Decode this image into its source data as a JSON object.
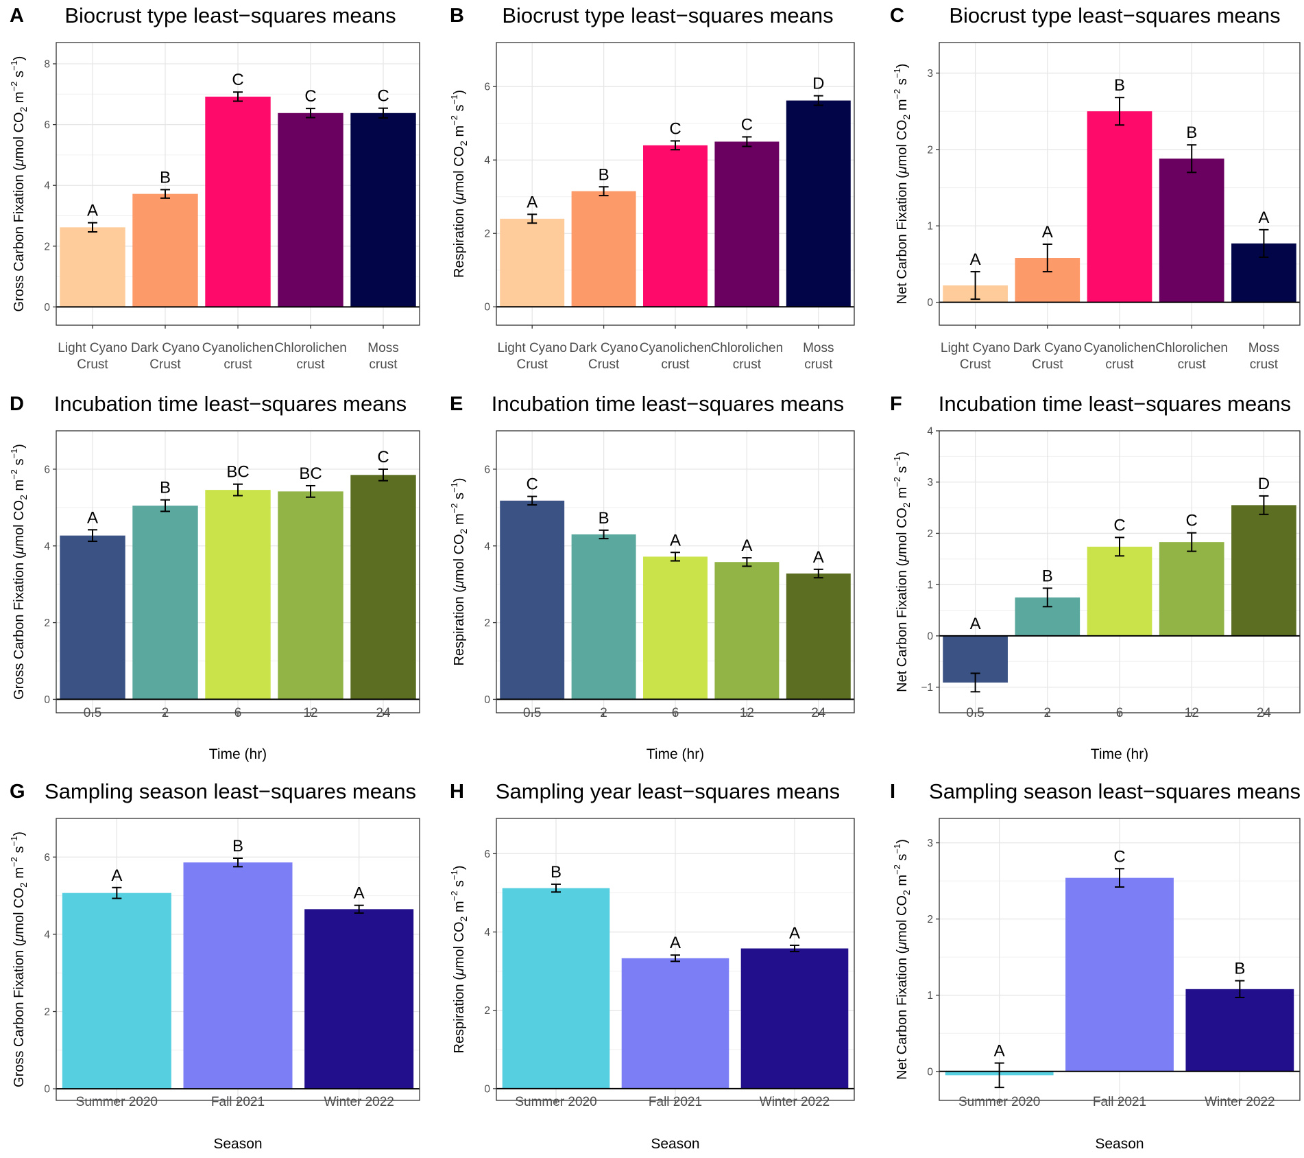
{
  "chart_data": [
    {
      "letter": "A",
      "title": "Biocrust type least−squares means",
      "type": "bar",
      "ylabel_pre": "Gross Carbon Fixation (",
      "xlabel": "",
      "ylim": [
        -0.6,
        8.7
      ],
      "yticks": [
        0,
        2,
        4,
        6,
        8
      ],
      "categories": [
        [
          "Light Cyano",
          "Crust"
        ],
        [
          "Dark Cyano",
          "Crust"
        ],
        [
          "Cyanolichen",
          "crust"
        ],
        [
          "Chlorolichen",
          "crust"
        ],
        [
          "Moss",
          "crust"
        ]
      ],
      "values": [
        2.62,
        3.72,
        6.92,
        6.38,
        6.38
      ],
      "se": [
        0.15,
        0.14,
        0.15,
        0.15,
        0.16
      ],
      "labels": [
        "A",
        "B",
        "C",
        "C",
        "C"
      ],
      "colors": [
        "#FDCC9A",
        "#FD9A6A",
        "#FE0A6A",
        "#6A005F",
        "#020648"
      ]
    },
    {
      "letter": "B",
      "title": "Biocrust type least−squares means",
      "type": "bar",
      "ylabel_pre": "Respiration (",
      "xlabel": "",
      "ylim": [
        -0.5,
        7.2
      ],
      "yticks": [
        0,
        2,
        4,
        6
      ],
      "categories": [
        [
          "Light Cyano",
          "Crust"
        ],
        [
          "Dark Cyano",
          "Crust"
        ],
        [
          "Cyanolichen",
          "crust"
        ],
        [
          "Chlorolichen",
          "crust"
        ],
        [
          "Moss",
          "crust"
        ]
      ],
      "values": [
        2.4,
        3.15,
        4.4,
        4.5,
        5.62
      ],
      "se": [
        0.12,
        0.12,
        0.12,
        0.13,
        0.13
      ],
      "labels": [
        "A",
        "B",
        "C",
        "C",
        "D"
      ],
      "colors": [
        "#FDCC9A",
        "#FD9A6A",
        "#FE0A6A",
        "#6A005F",
        "#020648"
      ]
    },
    {
      "letter": "C",
      "title": "Biocrust type least−squares means",
      "type": "bar",
      "ylabel_pre": "Net Carbon Fixation (",
      "xlabel": "",
      "ylim": [
        -0.3,
        3.4
      ],
      "yticks": [
        0,
        1,
        2,
        3
      ],
      "categories": [
        [
          "Light Cyano",
          "Crust"
        ],
        [
          "Dark Cyano",
          "Crust"
        ],
        [
          "Cyanolichen",
          "crust"
        ],
        [
          "Chlorolichen",
          "crust"
        ],
        [
          "Moss",
          "crust"
        ]
      ],
      "values": [
        0.22,
        0.58,
        2.5,
        1.88,
        0.77
      ],
      "se": [
        0.18,
        0.18,
        0.18,
        0.18,
        0.18
      ],
      "labels": [
        "A",
        "A",
        "B",
        "B",
        "A"
      ],
      "colors": [
        "#FDCC9A",
        "#FD9A6A",
        "#FE0A6A",
        "#6A005F",
        "#020648"
      ]
    },
    {
      "letter": "D",
      "title": "Incubation time least−squares means",
      "type": "bar",
      "ylabel_pre": "Gross Carbon Fixation (",
      "xlabel": "Time (hr)",
      "ylim": [
        -0.35,
        7.0
      ],
      "yticks": [
        0,
        2,
        4,
        6
      ],
      "categories": [
        [
          "0.5"
        ],
        [
          "2"
        ],
        [
          "6"
        ],
        [
          "12"
        ],
        [
          "24"
        ]
      ],
      "values": [
        4.27,
        5.05,
        5.46,
        5.42,
        5.85
      ],
      "se": [
        0.15,
        0.15,
        0.15,
        0.15,
        0.15
      ],
      "labels": [
        "A",
        "B",
        "BC",
        "BC",
        "C"
      ],
      "colors": [
        "#3B5284",
        "#5BA89F",
        "#CBE34B",
        "#92B346",
        "#5B6E22"
      ]
    },
    {
      "letter": "E",
      "title": "Incubation time least−squares means",
      "type": "bar",
      "ylabel_pre": "Respiration (",
      "xlabel": "Time (hr)",
      "ylim": [
        -0.35,
        7.0
      ],
      "yticks": [
        0,
        2,
        4,
        6
      ],
      "categories": [
        [
          "0.5"
        ],
        [
          "2"
        ],
        [
          "6"
        ],
        [
          "12"
        ],
        [
          "24"
        ]
      ],
      "values": [
        5.18,
        4.3,
        3.72,
        3.58,
        3.28
      ],
      "se": [
        0.11,
        0.11,
        0.11,
        0.11,
        0.11
      ],
      "labels": [
        "C",
        "B",
        "A",
        "A",
        "A"
      ],
      "colors": [
        "#3B5284",
        "#5BA89F",
        "#CBE34B",
        "#92B346",
        "#5B6E22"
      ]
    },
    {
      "letter": "F",
      "title": "Incubation time least−squares means",
      "type": "bar",
      "ylabel_pre": "Net Carbon Fixation (",
      "xlabel": "Time (hr)",
      "ylim": [
        -1.5,
        4.0
      ],
      "yticks": [
        -1,
        0,
        1,
        2,
        3,
        4
      ],
      "categories": [
        [
          "0.5"
        ],
        [
          "2"
        ],
        [
          "6"
        ],
        [
          "12"
        ],
        [
          "24"
        ]
      ],
      "values": [
        -0.91,
        0.75,
        1.74,
        1.83,
        2.55
      ],
      "se": [
        0.18,
        0.18,
        0.18,
        0.18,
        0.18
      ],
      "labels": [
        "A",
        "B",
        "C",
        "C",
        "D"
      ],
      "colors": [
        "#3B5284",
        "#5BA89F",
        "#CBE34B",
        "#92B346",
        "#5B6E22"
      ]
    },
    {
      "letter": "G",
      "title": "Sampling season least−squares means",
      "type": "bar",
      "ylabel_pre": "Gross Carbon Fixation (",
      "xlabel": "Season",
      "ylim": [
        -0.3,
        7.0
      ],
      "yticks": [
        0,
        2,
        4,
        6
      ],
      "categories": [
        [
          "Summer 2020"
        ],
        [
          "Fall 2021"
        ],
        [
          "Winter 2022"
        ]
      ],
      "values": [
        5.07,
        5.86,
        4.65
      ],
      "se": [
        0.14,
        0.11,
        0.1
      ],
      "labels": [
        "A",
        "B",
        "A"
      ],
      "colors": [
        "#56CFE0",
        "#7B7EF5",
        "#220F8C"
      ]
    },
    {
      "letter": "H",
      "title": "Sampling year least−squares means",
      "type": "bar",
      "ylabel_pre": "Respiration (",
      "xlabel": "Season",
      "ylim": [
        -0.3,
        6.9
      ],
      "yticks": [
        0,
        2,
        4,
        6
      ],
      "categories": [
        [
          "Summer 2020"
        ],
        [
          "Fall 2021"
        ],
        [
          "Winter 2022"
        ]
      ],
      "values": [
        5.12,
        3.33,
        3.58
      ],
      "se": [
        0.1,
        0.08,
        0.08
      ],
      "labels": [
        "B",
        "A",
        "A"
      ],
      "colors": [
        "#56CFE0",
        "#7B7EF5",
        "#220F8C"
      ]
    },
    {
      "letter": "I",
      "title": "Sampling season least−squares means",
      "type": "bar",
      "ylabel_pre": "Net Carbon Fixation (",
      "xlabel": "Season",
      "ylim": [
        -0.38,
        3.32
      ],
      "yticks": [
        0,
        1,
        2,
        3
      ],
      "categories": [
        [
          "Summer 2020"
        ],
        [
          "Fall 2021"
        ],
        [
          "Winter 2022"
        ]
      ],
      "values": [
        -0.05,
        2.54,
        1.08
      ],
      "se": [
        0.16,
        0.12,
        0.11
      ],
      "labels": [
        "A",
        "C",
        "B"
      ],
      "colors": [
        "#56CFE0",
        "#7B7EF5",
        "#220F8C"
      ]
    }
  ]
}
